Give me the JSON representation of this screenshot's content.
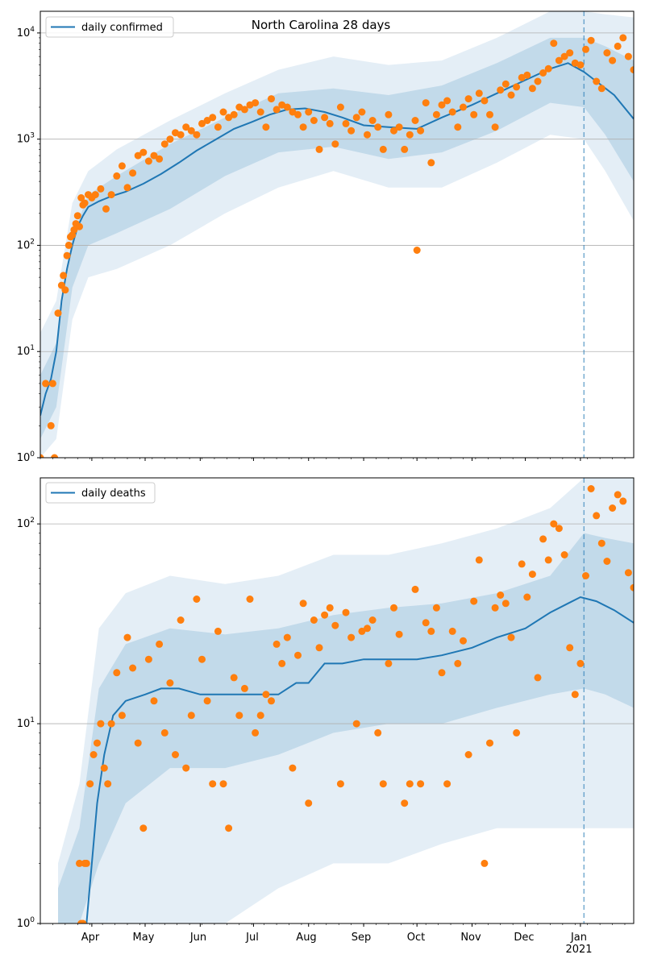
{
  "figure": {
    "title": "North Carolina 28 days"
  },
  "x_axis": {
    "month_labels": [
      "Apr",
      "May",
      "Jun",
      "Jul",
      "Aug",
      "Sep",
      "Oct",
      "Nov",
      "Dec",
      "Jan"
    ],
    "year_label": "2021"
  },
  "chart_data": [
    {
      "type": "scatter",
      "panel": "daily-confirmed",
      "title": "North Carolina 28 days",
      "xlabel": "",
      "ylabel": "",
      "y_scale": "log",
      "ylim": [
        1,
        16000
      ],
      "y_ticks": [
        "10^0",
        "10^1",
        "10^2",
        "10^3",
        "10^4"
      ],
      "x_range": [
        "2020-03-03",
        "2021-01-31"
      ],
      "x_ticks": [
        "Apr",
        "May",
        "Jun",
        "Jul",
        "Aug",
        "Sep",
        "Oct",
        "Nov",
        "Dec",
        "Jan",
        "2021"
      ],
      "grid": "horizontal",
      "legend": {
        "position": "top-left",
        "entries": [
          "daily confirmed"
        ]
      },
      "forecast_start": "2021-01-03",
      "line_series": {
        "name": "daily confirmed",
        "x": [
          "2020-03-03",
          "2020-03-06",
          "2020-03-09",
          "2020-03-12",
          "2020-03-15",
          "2020-03-18",
          "2020-03-21",
          "2020-03-24",
          "2020-03-27",
          "2020-03-30",
          "2020-04-05",
          "2020-04-12",
          "2020-04-20",
          "2020-04-30",
          "2020-05-10",
          "2020-05-20",
          "2020-05-30",
          "2020-06-10",
          "2020-06-20",
          "2020-06-30",
          "2020-07-10",
          "2020-07-20",
          "2020-07-30",
          "2020-08-10",
          "2020-08-20",
          "2020-09-01",
          "2020-09-15",
          "2020-10-01",
          "2020-10-15",
          "2020-11-01",
          "2020-11-15",
          "2020-12-01",
          "2020-12-15",
          "2020-12-25",
          "2021-01-03",
          "2021-01-10",
          "2021-01-20",
          "2021-01-31"
        ],
        "values": [
          2.5,
          4,
          5.5,
          10,
          30,
          60,
          100,
          150,
          190,
          230,
          260,
          290,
          320,
          380,
          470,
          600,
          780,
          1000,
          1250,
          1450,
          1700,
          1900,
          1950,
          1800,
          1600,
          1350,
          1300,
          1250,
          1600,
          2100,
          2700,
          3600,
          4600,
          5200,
          4300,
          3500,
          2600,
          1550
        ]
      },
      "bands": [
        {
          "name": "outer",
          "x": [
            "2020-03-03",
            "2020-03-12",
            "2020-03-21",
            "2020-03-30",
            "2020-04-15",
            "2020-05-15",
            "2020-06-15",
            "2020-07-15",
            "2020-08-15",
            "2020-09-15",
            "2020-10-15",
            "2020-11-15",
            "2020-12-15",
            "2021-01-03",
            "2021-01-15",
            "2021-01-31"
          ],
          "low": [
            1,
            1.5,
            20,
            50,
            60,
            100,
            200,
            350,
            500,
            350,
            350,
            600,
            1100,
            1000,
            500,
            170
          ],
          "high": [
            15,
            30,
            250,
            500,
            800,
            1500,
            2700,
            4500,
            6000,
            5000,
            5500,
            9000,
            16000,
            16000,
            15000,
            14000
          ]
        },
        {
          "name": "inner",
          "x": [
            "2020-03-03",
            "2020-03-12",
            "2020-03-21",
            "2020-03-30",
            "2020-04-15",
            "2020-05-15",
            "2020-06-15",
            "2020-07-15",
            "2020-08-15",
            "2020-09-15",
            "2020-10-15",
            "2020-11-15",
            "2020-12-15",
            "2021-01-03",
            "2021-01-15",
            "2021-01-31"
          ],
          "low": [
            1.5,
            3,
            40,
            100,
            130,
            220,
            450,
            750,
            850,
            650,
            750,
            1200,
            2200,
            2000,
            1100,
            400
          ],
          "high": [
            6,
            12,
            120,
            300,
            450,
            900,
            1600,
            2700,
            3000,
            2600,
            3200,
            5200,
            9000,
            9000,
            7500,
            5500
          ]
        }
      ],
      "points": {
        "x": [
          "2020-03-03",
          "2020-03-06",
          "2020-03-09",
          "2020-03-10",
          "2020-03-11",
          "2020-03-13",
          "2020-03-15",
          "2020-03-16",
          "2020-03-17",
          "2020-03-18",
          "2020-03-19",
          "2020-03-20",
          "2020-03-21",
          "2020-03-22",
          "2020-03-23",
          "2020-03-24",
          "2020-03-25",
          "2020-03-26",
          "2020-03-27",
          "2020-03-28",
          "2020-03-30",
          "2020-04-01",
          "2020-04-03",
          "2020-04-06",
          "2020-04-09",
          "2020-04-12",
          "2020-04-15",
          "2020-04-18",
          "2020-04-21",
          "2020-04-24",
          "2020-04-27",
          "2020-04-30",
          "2020-05-03",
          "2020-05-06",
          "2020-05-09",
          "2020-05-12",
          "2020-05-15",
          "2020-05-18",
          "2020-05-21",
          "2020-05-24",
          "2020-05-27",
          "2020-05-30",
          "2020-06-02",
          "2020-06-05",
          "2020-06-08",
          "2020-06-11",
          "2020-06-14",
          "2020-06-17",
          "2020-06-20",
          "2020-06-23",
          "2020-06-26",
          "2020-06-29",
          "2020-07-02",
          "2020-07-05",
          "2020-07-08",
          "2020-07-11",
          "2020-07-14",
          "2020-07-17",
          "2020-07-20",
          "2020-07-23",
          "2020-07-26",
          "2020-07-29",
          "2020-08-01",
          "2020-08-04",
          "2020-08-07",
          "2020-08-10",
          "2020-08-13",
          "2020-08-16",
          "2020-08-19",
          "2020-08-22",
          "2020-08-25",
          "2020-08-28",
          "2020-08-31",
          "2020-09-03",
          "2020-09-06",
          "2020-09-09",
          "2020-09-12",
          "2020-09-15",
          "2020-09-18",
          "2020-09-21",
          "2020-09-24",
          "2020-09-27",
          "2020-09-30",
          "2020-10-03",
          "2020-10-06",
          "2020-10-09",
          "2020-10-12",
          "2020-10-15",
          "2020-10-18",
          "2020-10-21",
          "2020-10-24",
          "2020-10-27",
          "2020-10-30",
          "2020-11-02",
          "2020-11-05",
          "2020-11-08",
          "2020-11-11",
          "2020-11-14",
          "2020-11-17",
          "2020-11-20",
          "2020-11-23",
          "2020-11-26",
          "2020-11-29",
          "2020-12-02",
          "2020-12-05",
          "2020-12-08",
          "2020-12-11",
          "2020-12-14",
          "2020-12-17",
          "2020-12-20",
          "2020-12-23",
          "2020-12-26",
          "2020-12-29",
          "2021-01-01",
          "2021-01-04",
          "2021-01-07",
          "2021-01-10",
          "2021-01-13",
          "2021-01-16",
          "2021-01-19",
          "2021-01-22",
          "2021-01-25",
          "2021-01-28",
          "2021-01-31"
        ],
        "values": [
          1,
          5,
          2,
          5,
          1,
          23,
          42,
          52,
          38,
          80,
          100,
          120,
          125,
          140,
          160,
          190,
          150,
          280,
          240,
          250,
          300,
          280,
          300,
          340,
          220,
          300,
          450,
          560,
          350,
          480,
          700,
          750,
          620,
          700,
          650,
          900,
          1000,
          1150,
          1100,
          1300,
          1200,
          1100,
          1400,
          1500,
          1600,
          1300,
          1800,
          1600,
          1700,
          2000,
          1900,
          2100,
          2200,
          1800,
          1300,
          2400,
          1900,
          2100,
          2000,
          1800,
          1700,
          1300,
          1800,
          1500,
          800,
          1600,
          1400,
          900,
          2000,
          1400,
          1200,
          1600,
          1800,
          1100,
          1500,
          1300,
          800,
          1700,
          1200,
          1300,
          800,
          1100,
          1500,
          1200,
          2200,
          600,
          1700,
          2100,
          2300,
          1800,
          1300,
          2000,
          2400,
          1700,
          2700,
          2300,
          1700,
          1300,
          2900,
          3300,
          2600,
          3100,
          3800,
          4000,
          3000,
          3500,
          4200,
          4600,
          8000,
          5500,
          6000,
          6500,
          5200,
          5000,
          7000,
          8500,
          3500,
          3000,
          6500,
          5500,
          7500,
          9000,
          6000,
          4500
        ],
        "outlier": {
          "x": "2020-10-01",
          "value": 90
        }
      }
    },
    {
      "type": "scatter",
      "panel": "daily-deaths",
      "title": "",
      "xlabel": "",
      "ylabel": "",
      "y_scale": "log",
      "ylim": [
        1,
        170
      ],
      "y_ticks": [
        "10^0",
        "10^1",
        "10^2"
      ],
      "x_range": [
        "2020-03-03",
        "2021-01-31"
      ],
      "x_ticks": [
        "Apr",
        "May",
        "Jun",
        "Jul",
        "Aug",
        "Sep",
        "Oct",
        "Nov",
        "Dec",
        "Jan",
        "2021"
      ],
      "grid": "horizontal",
      "legend": {
        "position": "top-left",
        "entries": [
          "daily deaths"
        ]
      },
      "forecast_start": "2021-01-03",
      "line_series": {
        "name": "daily deaths",
        "x": [
          "2020-03-29",
          "2020-04-01",
          "2020-04-04",
          "2020-04-08",
          "2020-04-13",
          "2020-04-20",
          "2020-05-01",
          "2020-05-10",
          "2020-05-20",
          "2020-06-01",
          "2020-06-15",
          "2020-06-25",
          "2020-07-05",
          "2020-07-15",
          "2020-07-25",
          "2020-08-01",
          "2020-08-10",
          "2020-08-20",
          "2020-09-01",
          "2020-09-15",
          "2020-10-01",
          "2020-10-15",
          "2020-11-01",
          "2020-11-15",
          "2020-12-01",
          "2020-12-15",
          "2020-12-25",
          "2021-01-01",
          "2021-01-10",
          "2021-01-20",
          "2021-01-31"
        ],
        "values": [
          1,
          2,
          4,
          7,
          11,
          13,
          14,
          15,
          15,
          14,
          14,
          14,
          14,
          14,
          16,
          16,
          20,
          20,
          21,
          21,
          21,
          22,
          24,
          27,
          30,
          36,
          40,
          43,
          41,
          37,
          32
        ]
      },
      "bands": [
        {
          "name": "outer",
          "x": [
            "2020-03-13",
            "2020-03-25",
            "2020-04-05",
            "2020-04-20",
            "2020-05-15",
            "2020-06-15",
            "2020-07-15",
            "2020-08-15",
            "2020-09-15",
            "2020-10-15",
            "2020-11-15",
            "2020-12-15",
            "2021-01-03",
            "2021-01-15",
            "2021-01-31"
          ],
          "low": [
            1,
            1,
            1,
            1,
            1,
            1,
            1.5,
            2,
            2,
            2.5,
            3,
            3,
            3,
            3,
            3
          ],
          "high": [
            2,
            5,
            30,
            45,
            55,
            50,
            55,
            70,
            70,
            80,
            95,
            120,
            170,
            170,
            170
          ]
        },
        {
          "name": "inner",
          "x": [
            "2020-03-13",
            "2020-03-25",
            "2020-04-05",
            "2020-04-20",
            "2020-05-15",
            "2020-06-15",
            "2020-07-15",
            "2020-08-15",
            "2020-09-15",
            "2020-10-15",
            "2020-11-15",
            "2020-12-15",
            "2021-01-03",
            "2021-01-15",
            "2021-01-31"
          ],
          "low": [
            1,
            1,
            2,
            4,
            6,
            6,
            7,
            9,
            10,
            10,
            12,
            14,
            15,
            14,
            12
          ],
          "high": [
            1.5,
            3,
            15,
            25,
            30,
            28,
            30,
            35,
            38,
            40,
            45,
            55,
            90,
            85,
            80
          ]
        }
      ],
      "points": {
        "x": [
          "2020-03-25",
          "2020-03-26",
          "2020-03-27",
          "2020-03-28",
          "2020-03-29",
          "2020-03-31",
          "2020-04-02",
          "2020-04-04",
          "2020-04-06",
          "2020-04-08",
          "2020-04-10",
          "2020-04-12",
          "2020-04-15",
          "2020-04-18",
          "2020-04-21",
          "2020-04-24",
          "2020-04-27",
          "2020-04-30",
          "2020-05-03",
          "2020-05-06",
          "2020-05-09",
          "2020-05-12",
          "2020-05-15",
          "2020-05-18",
          "2020-05-21",
          "2020-05-24",
          "2020-05-27",
          "2020-05-30",
          "2020-06-02",
          "2020-06-05",
          "2020-06-08",
          "2020-06-11",
          "2020-06-14",
          "2020-06-17",
          "2020-06-20",
          "2020-06-23",
          "2020-06-26",
          "2020-06-29",
          "2020-07-02",
          "2020-07-05",
          "2020-07-08",
          "2020-07-11",
          "2020-07-14",
          "2020-07-17",
          "2020-07-20",
          "2020-07-23",
          "2020-07-26",
          "2020-07-29",
          "2020-08-01",
          "2020-08-04",
          "2020-08-07",
          "2020-08-10",
          "2020-08-13",
          "2020-08-16",
          "2020-08-19",
          "2020-08-22",
          "2020-08-25",
          "2020-08-28",
          "2020-08-31",
          "2020-09-03",
          "2020-09-06",
          "2020-09-09",
          "2020-09-12",
          "2020-09-15",
          "2020-09-18",
          "2020-09-21",
          "2020-09-24",
          "2020-09-27",
          "2020-09-30",
          "2020-10-03",
          "2020-10-06",
          "2020-10-09",
          "2020-10-12",
          "2020-10-15",
          "2020-10-18",
          "2020-10-21",
          "2020-10-24",
          "2020-10-27",
          "2020-10-30",
          "2020-11-02",
          "2020-11-05",
          "2020-11-08",
          "2020-11-11",
          "2020-11-14",
          "2020-11-17",
          "2020-11-20",
          "2020-11-23",
          "2020-11-26",
          "2020-11-29",
          "2020-12-02",
          "2020-12-05",
          "2020-12-08",
          "2020-12-11",
          "2020-12-14",
          "2020-12-17",
          "2020-12-20",
          "2020-12-23",
          "2020-12-26",
          "2020-12-29",
          "2021-01-01",
          "2021-01-04",
          "2021-01-07",
          "2021-01-10",
          "2021-01-13",
          "2021-01-16",
          "2021-01-19",
          "2021-01-22",
          "2021-01-25",
          "2021-01-28",
          "2021-01-31"
        ],
        "values": [
          2,
          1,
          1,
          2,
          2,
          5,
          7,
          8,
          10,
          6,
          5,
          10,
          18,
          11,
          27,
          19,
          8,
          3,
          21,
          13,
          25,
          9,
          16,
          7,
          33,
          6,
          11,
          42,
          21,
          13,
          5,
          29,
          5,
          3,
          17,
          11,
          15,
          42,
          9,
          11,
          14,
          13,
          25,
          20,
          27,
          6,
          22,
          40,
          4,
          33,
          24,
          35,
          38,
          31,
          5,
          36,
          27,
          10,
          29,
          30,
          33,
          9,
          5,
          20,
          38,
          28,
          4,
          5,
          47,
          5,
          32,
          29,
          38,
          18,
          5,
          29,
          20,
          26,
          7,
          41,
          66,
          2,
          8,
          38,
          44,
          40,
          27,
          9,
          63,
          43,
          56,
          17,
          84,
          66,
          100,
          95,
          70,
          24,
          14,
          20,
          55,
          150,
          110,
          80,
          65,
          120,
          140,
          130,
          57,
          48
        ]
      }
    }
  ]
}
